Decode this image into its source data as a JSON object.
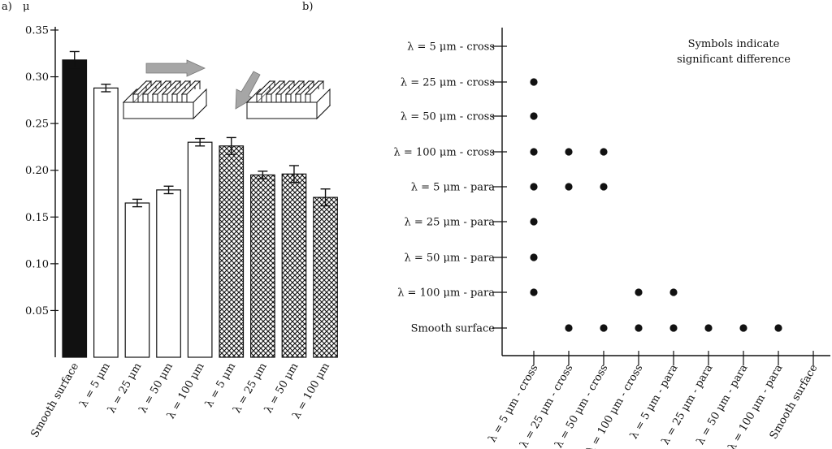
{
  "panel_a": {
    "label": "a)",
    "ylabel": "μ",
    "chart_data": {
      "type": "bar",
      "ylabel": "μ",
      "ylim": [
        0,
        0.35
      ],
      "yticks": [
        "0.05",
        "0.10",
        "0.15",
        "0.20",
        "0.25",
        "0.30",
        "0.35"
      ],
      "categories": [
        "Smooth surface",
        "λ = 5 μm",
        "λ = 25 μm",
        "λ = 50 μm",
        "λ = 100 μm",
        "λ = 5 μm",
        "λ = 25 μm",
        "λ = 50 μm",
        "λ = 100 μm"
      ],
      "values": [
        0.318,
        0.288,
        0.165,
        0.179,
        0.23,
        0.226,
        0.195,
        0.196,
        0.171
      ],
      "errors": [
        0.009,
        0.004,
        0.004,
        0.004,
        0.004,
        0.009,
        0.004,
        0.009,
        0.009
      ],
      "fills": [
        "solid-black",
        "white",
        "white",
        "white",
        "white",
        "crosshatch",
        "crosshatch",
        "crosshatch",
        "crosshatch"
      ],
      "grid": false
    }
  },
  "panel_b": {
    "label": "b)",
    "annotation_line1": "Symbols indicate",
    "annotation_line2": "significant difference",
    "chart_data": {
      "type": "scatter",
      "ylabels": [
        "λ = 5 μm - cross",
        "λ = 25 μm - cross",
        "λ = 50 μm - cross",
        "λ = 100 μm - cross",
        "λ = 5 μm - para",
        "λ = 25 μm - para",
        "λ = 50 μm - para",
        "λ = 100 μm - para",
        "Smooth surface"
      ],
      "xlabels": [
        "λ = 5 μm - cross",
        "λ = 25 μm - cross",
        "λ = 50 μm - cross",
        "λ = 100 μm - cross",
        "λ = 5 μm - para",
        "λ = 25 μm - para",
        "λ = 50 μm - para",
        "λ = 100 μm - para",
        "Smooth surface"
      ],
      "points": [
        {
          "x": "λ = 5 μm - cross",
          "y": "λ = 25 μm - cross"
        },
        {
          "x": "λ = 5 μm - cross",
          "y": "λ = 50 μm - cross"
        },
        {
          "x": "λ = 5 μm - cross",
          "y": "λ = 100 μm - cross"
        },
        {
          "x": "λ = 25 μm - cross",
          "y": "λ = 100 μm - cross"
        },
        {
          "x": "λ = 50 μm - cross",
          "y": "λ = 100 μm - cross"
        },
        {
          "x": "λ = 5 μm - cross",
          "y": "λ = 5 μm - para"
        },
        {
          "x": "λ = 25 μm - cross",
          "y": "λ = 5 μm - para"
        },
        {
          "x": "λ = 50 μm - cross",
          "y": "λ = 5 μm - para"
        },
        {
          "x": "λ = 5 μm - cross",
          "y": "λ = 25 μm - para"
        },
        {
          "x": "λ = 5 μm - cross",
          "y": "λ = 50 μm - para"
        },
        {
          "x": "λ = 5 μm - cross",
          "y": "λ = 100 μm - para"
        },
        {
          "x": "λ = 100 μm - cross",
          "y": "λ = 100 μm - para"
        },
        {
          "x": "λ = 5 μm - para",
          "y": "λ = 100 μm - para"
        },
        {
          "x": "λ = 25 μm - cross",
          "y": "Smooth surface"
        },
        {
          "x": "λ = 50 μm - cross",
          "y": "Smooth surface"
        },
        {
          "x": "λ = 100 μm - cross",
          "y": "Smooth surface"
        },
        {
          "x": "λ = 5 μm - para",
          "y": "Smooth surface"
        },
        {
          "x": "λ = 25 μm - para",
          "y": "Smooth surface"
        },
        {
          "x": "λ = 50 μm - para",
          "y": "Smooth surface"
        },
        {
          "x": "λ = 100 μm - para",
          "y": "Smooth surface"
        }
      ]
    }
  },
  "icons": {
    "groove_cross": "grooved-block-perpendicular-arrow-icon",
    "groove_para": "grooved-block-parallel-arrow-icon"
  },
  "colors": {
    "ink": "#111111",
    "arrow": "#a6a6a6",
    "hatch_bg": "#ffffff"
  }
}
